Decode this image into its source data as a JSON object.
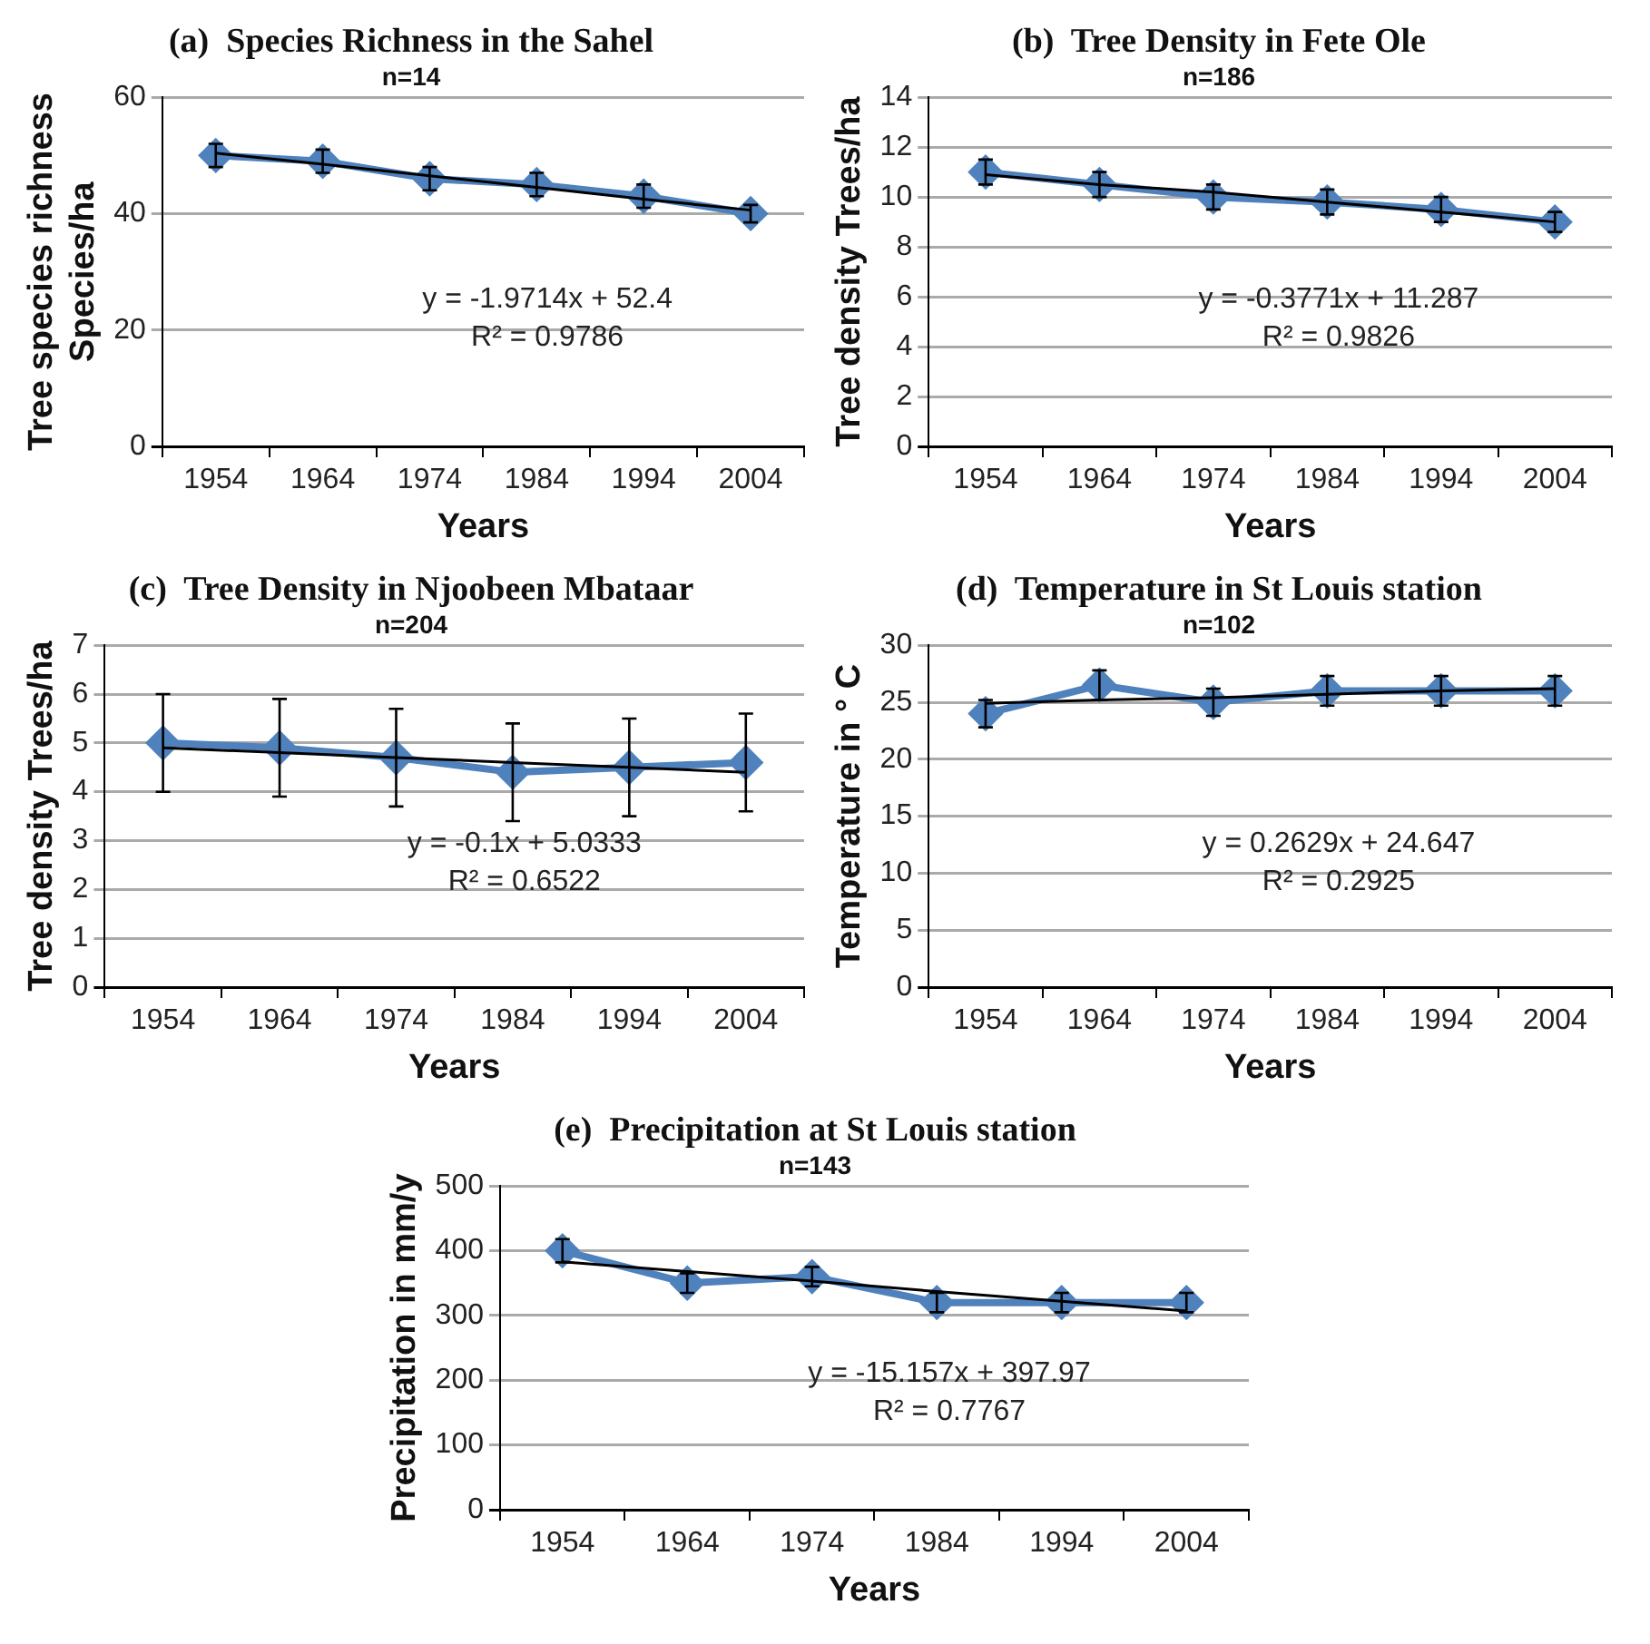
{
  "chart_data": [
    {
      "type": "line",
      "title": "(a)  Species Richness in the Sahel",
      "subtitle": "n=14",
      "xlabel": "Years",
      "ylabel": "Tree species richness Species/ha",
      "categories": [
        "1954",
        "1964",
        "1974",
        "1984",
        "1994",
        "2004"
      ],
      "ylim": [
        0,
        60
      ],
      "yticks": [
        0,
        20,
        40,
        60
      ],
      "grid": "y",
      "legend": false,
      "annotations": [
        "y = -1.9714x + 52.4",
        "R² = 0.9786"
      ],
      "series": [
        {
          "color": "#4f81bd",
          "marker": "diamond",
          "values": [
            50,
            49,
            46,
            45,
            43,
            40
          ],
          "errors": [
            2,
            2,
            2,
            2,
            2,
            1.5
          ]
        },
        {
          "color": "#000000",
          "marker": "none",
          "values": [
            50.4,
            48.5,
            46.5,
            44.5,
            42.5,
            40.6
          ]
        }
      ]
    },
    {
      "type": "line",
      "title": "(b)  Tree Density in Fete Ole",
      "subtitle": "n=186",
      "xlabel": "Years",
      "ylabel": "Tree density Trees/ha",
      "categories": [
        "1954",
        "1964",
        "1974",
        "1984",
        "1994",
        "2004"
      ],
      "ylim": [
        0,
        14
      ],
      "yticks": [
        0,
        2,
        4,
        6,
        8,
        10,
        12,
        14
      ],
      "grid": "y",
      "legend": false,
      "annotations": [
        "y = -0.3771x + 11.287",
        "R² = 0.9826"
      ],
      "series": [
        {
          "color": "#4f81bd",
          "marker": "diamond",
          "values": [
            11,
            10.5,
            10,
            9.8,
            9.5,
            9
          ],
          "errors": [
            0.5,
            0.5,
            0.5,
            0.5,
            0.5,
            0.4
          ]
        },
        {
          "color": "#000000",
          "marker": "none",
          "values": [
            10.9,
            10.5,
            10.2,
            9.8,
            9.4,
            9
          ]
        }
      ]
    },
    {
      "type": "line",
      "title": "(c)  Tree Density in Njoobeen Mbataar",
      "subtitle": "n=204",
      "xlabel": "Years",
      "ylabel": "Tree density Trees/ha",
      "categories": [
        "1954",
        "1964",
        "1974",
        "1984",
        "1994",
        "2004"
      ],
      "ylim": [
        0,
        7
      ],
      "yticks": [
        0,
        1,
        2,
        3,
        4,
        5,
        6,
        7
      ],
      "grid": "y",
      "legend": false,
      "annotations": [
        "y = -0.1x + 5.0333",
        "R² = 0.6522"
      ],
      "series": [
        {
          "color": "#4f81bd",
          "marker": "diamond",
          "values": [
            5,
            4.9,
            4.7,
            4.4,
            4.5,
            4.6
          ],
          "errors": [
            1,
            1,
            1,
            1,
            1,
            1
          ]
        },
        {
          "color": "#000000",
          "marker": "none",
          "values": [
            4.9,
            4.8,
            4.7,
            4.6,
            4.5,
            4.4
          ]
        }
      ]
    },
    {
      "type": "line",
      "title": "(d)  Temperature in St Louis station",
      "subtitle": "n=102",
      "xlabel": "Years",
      "ylabel": "Temperature in ° C",
      "categories": [
        "1954",
        "1964",
        "1974",
        "1984",
        "1994",
        "2004"
      ],
      "ylim": [
        0,
        30
      ],
      "yticks": [
        0,
        5,
        10,
        15,
        20,
        25,
        30
      ],
      "grid": "y",
      "legend": false,
      "annotations": [
        "y = 0.2629x + 24.647",
        "R² = 0.2925"
      ],
      "series": [
        {
          "color": "#4f81bd",
          "marker": "diamond",
          "values": [
            24,
            26.5,
            25,
            26,
            26,
            26
          ],
          "errors": [
            1.2,
            1.3,
            1.2,
            1.3,
            1.3,
            1.3
          ]
        },
        {
          "color": "#000000",
          "marker": "none",
          "values": [
            24.9,
            25.2,
            25.4,
            25.7,
            26,
            26.2
          ]
        }
      ]
    },
    {
      "type": "line",
      "title": "(e)  Precipitation at St Louis station",
      "subtitle": "n=143",
      "xlabel": "Years",
      "ylabel": "Precipitation in mm/y",
      "categories": [
        "1954",
        "1964",
        "1974",
        "1984",
        "1994",
        "2004"
      ],
      "ylim": [
        0,
        500
      ],
      "yticks": [
        0,
        100,
        200,
        300,
        400,
        500
      ],
      "grid": "y",
      "legend": false,
      "annotations": [
        "y = -15.157x + 397.97",
        "R² = 0.7767"
      ],
      "series": [
        {
          "color": "#4f81bd",
          "marker": "diamond",
          "values": [
            400,
            350,
            360,
            320,
            320,
            320
          ],
          "errors": [
            18,
            15,
            15,
            15,
            15,
            15
          ]
        },
        {
          "color": "#000000",
          "marker": "none",
          "values": [
            383,
            368,
            353,
            337,
            322,
            307
          ]
        }
      ]
    }
  ]
}
